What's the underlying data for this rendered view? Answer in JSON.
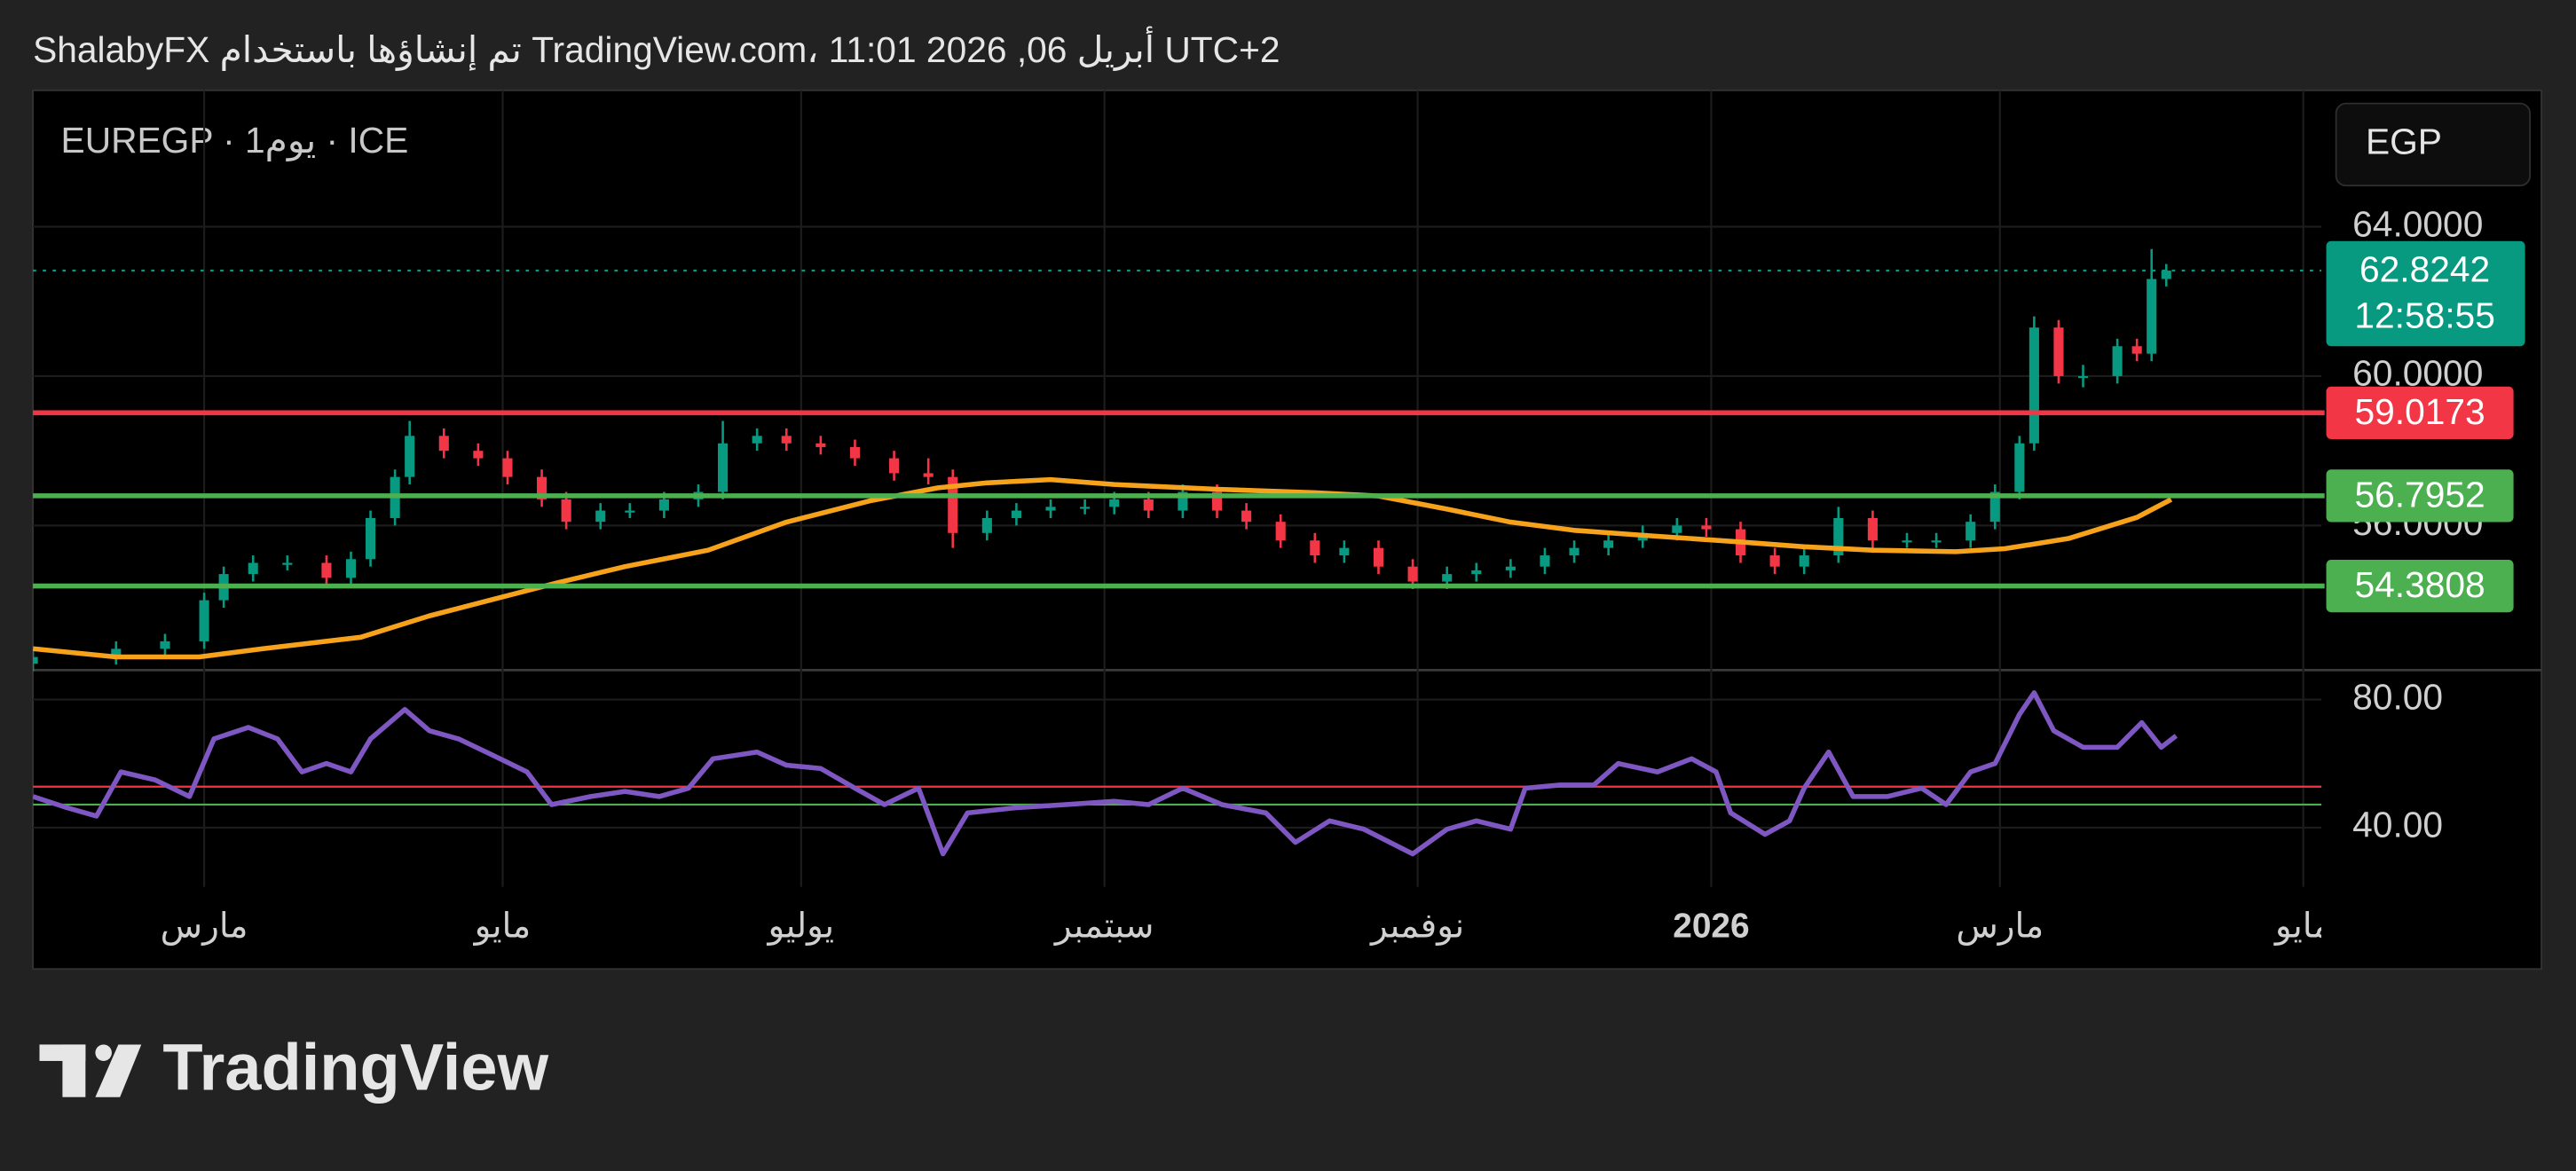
{
  "chart_data": {
    "type": "candlestick",
    "title": "ShalabyFX تم إنشاؤها باستخدام TradingView.com، أبريل 06, 2026 11:01 UTC+2",
    "subtitle": "EUREGP · 1يوم · ICE",
    "currency": "EGP",
    "countdown": "12:58:55",
    "brand": "TradingView",
    "up_color": "#089981",
    "down_color": "#f23645",
    "grid": true,
    "xlim": [
      0,
      465
    ],
    "xticks": [
      {
        "value": 35,
        "label": "مارس"
      },
      {
        "value": 96,
        "label": "مايو"
      },
      {
        "value": 157,
        "label": "يوليو"
      },
      {
        "value": 219,
        "label": "سبتمبر"
      },
      {
        "value": 283,
        "label": "نوفمبر"
      },
      {
        "value": 343,
        "label": "2026"
      },
      {
        "value": 402,
        "label": "مارس"
      },
      {
        "value": 464,
        "label": "مايو"
      }
    ],
    "ylim": [
      52.13,
      67.65
    ],
    "yticks": [
      {
        "value": 56,
        "label": "56.0000"
      },
      {
        "value": 60,
        "label": "60.0000"
      },
      {
        "value": 64,
        "label": "64.0000"
      }
    ],
    "x": [
      0,
      17,
      27,
      35,
      39,
      45,
      52,
      60,
      65,
      69,
      74,
      77,
      84,
      91,
      97,
      104,
      109,
      116,
      122,
      129,
      136,
      141,
      148,
      154,
      161,
      168,
      176,
      183,
      188,
      195,
      201,
      208,
      215,
      221,
      228,
      235,
      242,
      248,
      255,
      262,
      268,
      275,
      282,
      289,
      295,
      302,
      309,
      315,
      322,
      329,
      336,
      342,
      349,
      356,
      362,
      369,
      376,
      383,
      389,
      396,
      401,
      406,
      409,
      414,
      419,
      426,
      430,
      433,
      436
    ],
    "open": [
      52.3,
      52.48,
      52.7,
      52.9,
      54.0,
      54.7,
      55.0,
      55.0,
      54.6,
      55.1,
      56.2,
      57.3,
      58.4,
      58.0,
      57.8,
      57.3,
      56.7,
      56.1,
      56.4,
      56.4,
      56.7,
      56.9,
      58.2,
      58.4,
      58.2,
      58.1,
      57.8,
      57.4,
      57.3,
      55.8,
      56.2,
      56.4,
      56.5,
      56.5,
      56.7,
      56.4,
      56.9,
      56.4,
      56.1,
      55.6,
      55.2,
      55.4,
      54.9,
      54.5,
      54.7,
      54.8,
      54.9,
      55.2,
      55.4,
      55.6,
      55.8,
      56.0,
      55.9,
      55.2,
      54.9,
      55.2,
      56.2,
      55.6,
      55.6,
      55.6,
      56.1,
      56.9,
      58.2,
      61.3,
      60.0,
      60.0,
      60.8,
      60.6,
      62.6
    ],
    "high": [
      52.68,
      52.9,
      53.1,
      54.2,
      54.9,
      55.2,
      55.2,
      55.2,
      55.3,
      56.4,
      57.5,
      58.8,
      58.6,
      58.2,
      58.0,
      57.5,
      56.9,
      56.6,
      56.6,
      56.9,
      57.1,
      58.8,
      58.6,
      58.6,
      58.4,
      58.3,
      58.0,
      57.8,
      57.5,
      56.4,
      56.6,
      56.7,
      56.7,
      56.9,
      56.9,
      57.1,
      57.1,
      56.6,
      56.3,
      55.8,
      55.6,
      55.6,
      55.1,
      54.9,
      55.0,
      55.1,
      55.4,
      55.6,
      55.8,
      56.0,
      56.2,
      56.2,
      56.1,
      55.4,
      55.4,
      56.5,
      56.4,
      55.8,
      55.8,
      56.3,
      57.1,
      58.4,
      61.6,
      61.5,
      60.3,
      61.0,
      61.0,
      63.4,
      63.0
    ],
    "low": [
      52.1,
      52.28,
      52.5,
      52.7,
      53.8,
      54.5,
      54.8,
      54.4,
      54.4,
      54.9,
      56.0,
      57.1,
      57.8,
      57.6,
      57.1,
      56.5,
      55.9,
      55.9,
      56.2,
      56.2,
      56.5,
      56.7,
      58.0,
      58.0,
      57.9,
      57.6,
      57.2,
      57.1,
      55.4,
      55.6,
      56.0,
      56.2,
      56.3,
      56.3,
      56.2,
      56.2,
      56.2,
      55.9,
      55.4,
      55.0,
      55.0,
      54.7,
      54.3,
      54.3,
      54.5,
      54.6,
      54.7,
      55.0,
      55.2,
      55.4,
      55.6,
      55.7,
      55.0,
      54.7,
      54.7,
      55.0,
      55.4,
      55.4,
      55.4,
      55.4,
      55.9,
      56.7,
      58.0,
      59.8,
      59.7,
      59.8,
      60.4,
      60.4,
      62.4
    ],
    "close": [
      52.48,
      52.7,
      52.9,
      54.0,
      54.7,
      55.0,
      55.0,
      54.6,
      55.1,
      56.2,
      57.3,
      58.4,
      58.0,
      57.8,
      57.3,
      56.7,
      56.1,
      56.4,
      56.4,
      56.7,
      56.9,
      58.2,
      58.4,
      58.2,
      58.1,
      57.8,
      57.4,
      57.3,
      55.8,
      56.2,
      56.4,
      56.5,
      56.5,
      56.7,
      56.4,
      56.9,
      56.4,
      56.1,
      55.6,
      55.2,
      55.4,
      54.9,
      54.5,
      54.7,
      54.8,
      54.9,
      55.2,
      55.4,
      55.6,
      55.8,
      56.0,
      55.9,
      55.2,
      54.9,
      55.2,
      56.2,
      55.6,
      55.6,
      55.6,
      56.1,
      56.9,
      58.2,
      61.3,
      60.0,
      60.0,
      60.8,
      60.6,
      62.6,
      62.8242
    ],
    "overlays": [
      {
        "type": "line",
        "color": "#f7a21b",
        "x": [
          0,
          17,
          34,
          47,
          67,
          81,
          94,
          107,
          121,
          138,
          154,
          171,
          185,
          195,
          208,
          221,
          242,
          262,
          275,
          289,
          302,
          315,
          329,
          349,
          362,
          376,
          393,
          403,
          416,
          430,
          437
        ],
        "values": [
          52.7,
          52.48,
          52.48,
          52.7,
          53.01,
          53.58,
          54.02,
          54.46,
          54.9,
          55.34,
          56.09,
          56.66,
          57.01,
          57.14,
          57.23,
          57.1,
          56.97,
          56.88,
          56.79,
          56.44,
          56.09,
          55.87,
          55.74,
          55.56,
          55.43,
          55.34,
          55.3,
          55.38,
          55.65,
          56.22,
          56.7
        ]
      }
    ],
    "levels": [
      {
        "value": 59.0173,
        "color": "#f23645"
      },
      {
        "value": 56.7952,
        "color": "#4caf50"
      },
      {
        "value": 54.3808,
        "color": "#4caf50"
      }
    ],
    "rsi": {
      "type": "line",
      "color": "#7e57c2",
      "ylim": [
        21.5,
        89.2
      ],
      "yticks": [
        {
          "value": 40,
          "label": "40.00"
        },
        {
          "value": 80,
          "label": "80.00"
        }
      ],
      "levels": [
        {
          "value": 52.8,
          "color": "#f23645"
        },
        {
          "value": 47.2,
          "color": "#4caf50"
        }
      ],
      "x": [
        0,
        7,
        13,
        18,
        25,
        32,
        37,
        44,
        50,
        55,
        60,
        65,
        69,
        76,
        81,
        87,
        94,
        101,
        106,
        114,
        121,
        128,
        134,
        139,
        148,
        154,
        161,
        168,
        174,
        181,
        186,
        191,
        201,
        211,
        221,
        228,
        235,
        243,
        252,
        258,
        265,
        272,
        282,
        289,
        295,
        302,
        305,
        312,
        319,
        324,
        332,
        339,
        344,
        347,
        354,
        359,
        362,
        367,
        372,
        379,
        386,
        391,
        396,
        401,
        406,
        409,
        413,
        419,
        426,
        431,
        435,
        438
      ],
      "values": [
        49.7,
        46.2,
        43.6,
        57.4,
        54.9,
        49.7,
        67.7,
        71.3,
        67.7,
        57.4,
        60.0,
        57.4,
        67.7,
        76.9,
        70.3,
        67.7,
        62.6,
        57.4,
        47.2,
        49.7,
        51.3,
        49.7,
        52.3,
        61.5,
        63.6,
        59.5,
        58.5,
        52.3,
        47.2,
        52.3,
        31.8,
        44.6,
        46.2,
        47.2,
        48.2,
        47.2,
        52.3,
        47.2,
        44.6,
        35.4,
        42.1,
        39.5,
        31.8,
        39.5,
        42.1,
        39.5,
        52.3,
        53.3,
        53.3,
        60.0,
        57.4,
        61.5,
        57.4,
        44.6,
        37.9,
        42.1,
        52.3,
        63.6,
        49.7,
        49.7,
        52.3,
        47.2,
        57.4,
        60.0,
        75.4,
        82.1,
        70.3,
        65.1,
        65.1,
        72.8,
        65.1,
        68.7
      ]
    }
  }
}
